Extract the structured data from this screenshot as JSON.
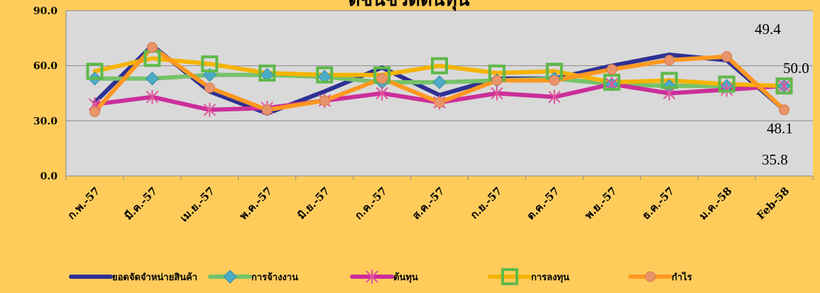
{
  "chart_data": {
    "type": "line",
    "title": "ดัชนีชี้วัดต้นทุน",
    "categories": [
      "ก.พ.-57",
      "มี.ค.-57",
      "เม.ย.-57",
      "พ.ค.-57",
      "มิ.ย.-57",
      "ก.ค.-57",
      "ส.ค.-57",
      "ก.ย.-57",
      "ต.ค.-57",
      "พ.ย.-57",
      "ธ.ค.-57",
      "ม.ค.-58",
      "Feb-58"
    ],
    "ylim": [
      0,
      90
    ],
    "yticks": [
      "0.0",
      "30.0",
      "60.0",
      "90.0"
    ],
    "grid": true,
    "legend_position": "bottom",
    "annotations": [
      "49.4",
      "50.0",
      "48.1",
      "35.8"
    ],
    "series": [
      {
        "name": "ยอดจัดจำหน่ายสินค้า",
        "color": "#2E3192",
        "marker": "none",
        "values": [
          40,
          71,
          46,
          34,
          46,
          59,
          44,
          53,
          53,
          60,
          66,
          63,
          36
        ]
      },
      {
        "name": "การจ้างงาน",
        "color": "#76C26A",
        "marker": "diamond",
        "values": [
          53,
          53,
          55,
          55,
          54,
          51,
          51,
          52,
          53,
          50,
          49,
          49,
          49
        ]
      },
      {
        "name": "ต้นทุน",
        "color": "#CC2E9A",
        "marker": "star",
        "values": [
          39,
          43,
          36,
          37,
          41,
          45,
          40,
          45,
          43,
          50,
          45,
          47,
          49
        ]
      },
      {
        "name": "การลงทุน",
        "color": "#F5B400",
        "marker": "square",
        "values": [
          57,
          64,
          61,
          56,
          55,
          55,
          60,
          56,
          57,
          51,
          52,
          50,
          49
        ]
      },
      {
        "name": "กำไร",
        "color": "#FF9820",
        "marker": "circle",
        "values": [
          35,
          70,
          48,
          36,
          41,
          53,
          40,
          52,
          52,
          58,
          63,
          65,
          36
        ]
      }
    ]
  }
}
